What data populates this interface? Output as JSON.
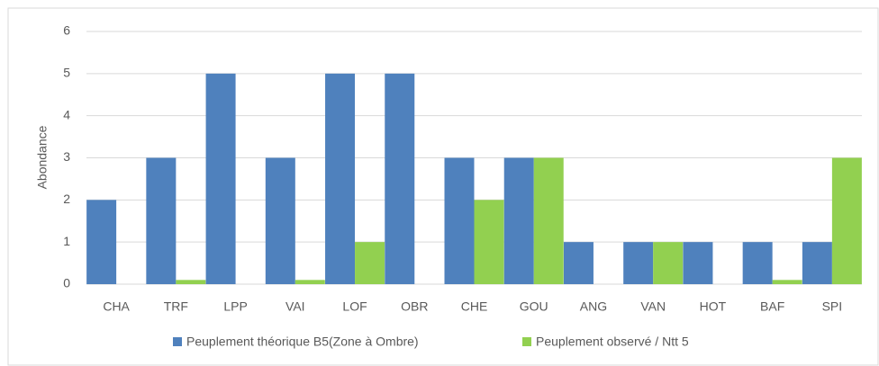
{
  "chart_data": {
    "type": "bar",
    "y_label": "Abondance",
    "categories": [
      "CHA",
      "TRF",
      "LPP",
      "VAI",
      "LOF",
      "OBR",
      "CHE",
      "GOU",
      "ANG",
      "VAN",
      "HOT",
      "BAF",
      "SPI"
    ],
    "series": [
      {
        "name": "Peuplement théorique B5(Zone à Ombre)",
        "color": "#4f81bd",
        "values": [
          2,
          3,
          5,
          3,
          5,
          5,
          3,
          3,
          1,
          1,
          1,
          1,
          1
        ]
      },
      {
        "name": "Peuplement observé / Ntt 5",
        "color": "#92d050",
        "values": [
          0,
          0.1,
          0,
          0.1,
          1,
          0,
          2,
          3,
          0,
          1,
          0,
          0.1,
          3
        ]
      }
    ],
    "ylim": [
      0,
      6
    ],
    "yticks": [
      0,
      1,
      2,
      3,
      4,
      5,
      6
    ],
    "grid": true
  }
}
